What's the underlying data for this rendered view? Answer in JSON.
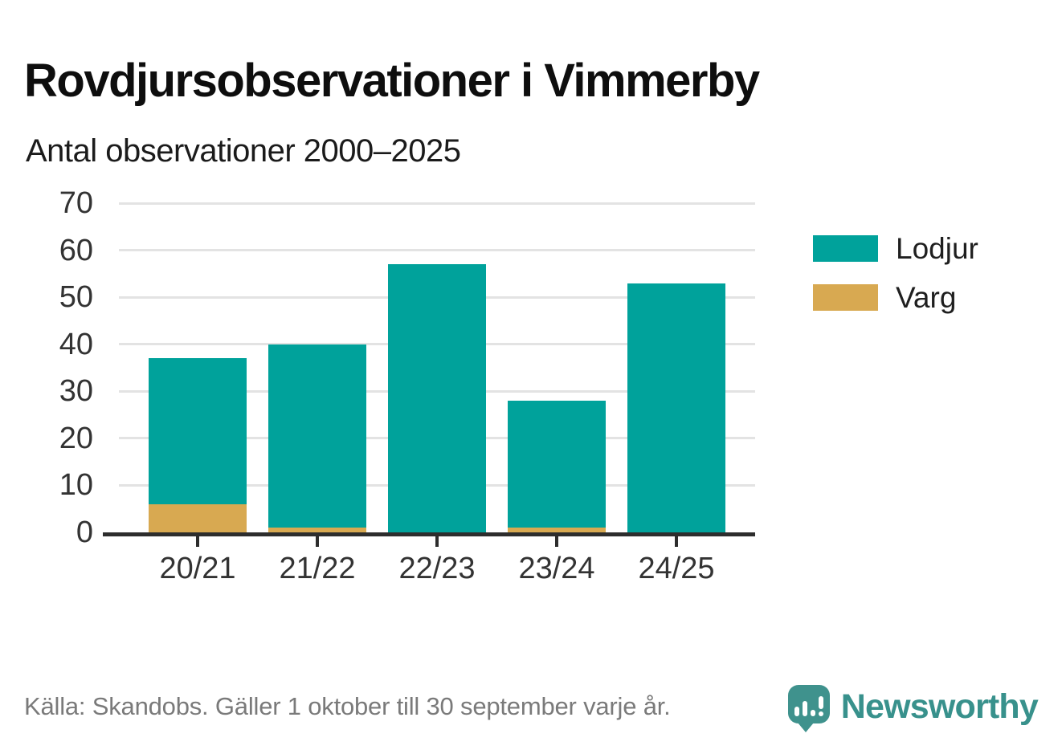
{
  "header": {
    "title": "Rovdjursobservationer i Vimmerby",
    "subtitle": "Antal observationer 2000–2025"
  },
  "chart_data": {
    "type": "bar",
    "stacked": true,
    "title": "Rovdjursobservationer i Vimmerby",
    "subtitle": "Antal observationer 2000–2025",
    "categories": [
      "20/21",
      "21/22",
      "22/23",
      "23/24",
      "24/25"
    ],
    "series": [
      {
        "name": "Lodjur",
        "color": "#00a29b",
        "values": [
          31,
          39,
          57,
          27,
          53
        ]
      },
      {
        "name": "Varg",
        "color": "#d8a951",
        "values": [
          6,
          1,
          0,
          1,
          0
        ]
      }
    ],
    "stack_totals": [
      37,
      40,
      57,
      28,
      53
    ],
    "ylim": [
      0,
      70
    ],
    "yticks": [
      0,
      10,
      20,
      30,
      40,
      50,
      60,
      70
    ],
    "xlabel": "",
    "ylabel": "",
    "grid": "horizontal",
    "legend_position": "right"
  },
  "footer": {
    "source": "Källa: Skandobs. Gäller 1 oktober till 30 september varje år.",
    "brand_name": "Newsworthy"
  },
  "colors": {
    "lodjur": "#00a29b",
    "varg": "#d8a951",
    "brand_teal": "#38918c",
    "axis_text": "#333333",
    "grid_line": "#e3e3e3",
    "axis_line": "#2d2d2d",
    "source_text": "#7a7a7a"
  },
  "icons": {
    "brand_logo": "newsworthy-chart-bubble-icon"
  }
}
